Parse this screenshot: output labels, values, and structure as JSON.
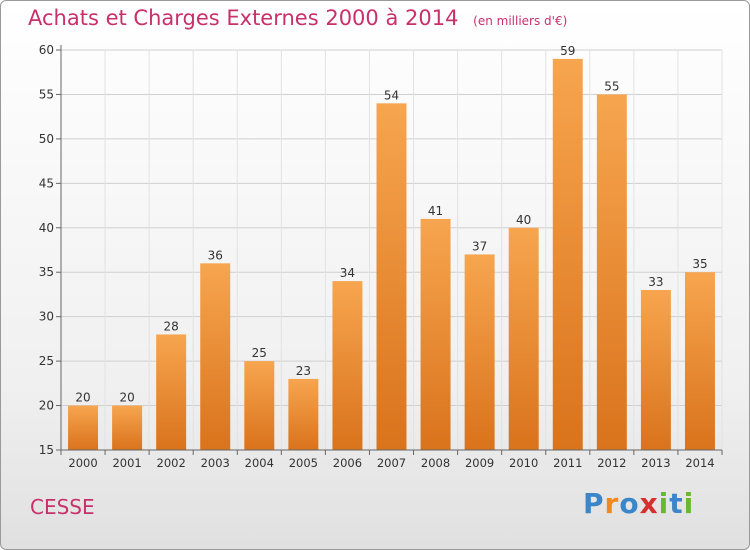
{
  "header": {
    "title": "Achats et Charges Externes 2000 à 2014",
    "subtitle": "(en milliers d'€)"
  },
  "footer": {
    "commune": "CESSE",
    "logo": "Proxiti"
  },
  "colors": {
    "bar_top": "#f7a54f",
    "bar_bottom": "#d9731c",
    "title": "#c8306a",
    "logo": [
      "#3a86c8",
      "#f08a1c",
      "#3a86c8",
      "#d62f2f",
      "#6ab82f",
      "#3a86c8",
      "#6ab82f"
    ]
  },
  "chart_data": {
    "type": "bar",
    "categories": [
      "2000",
      "2001",
      "2002",
      "2003",
      "2004",
      "2005",
      "2006",
      "2007",
      "2008",
      "2009",
      "2010",
      "2011",
      "2012",
      "2013",
      "2014"
    ],
    "values": [
      20,
      20,
      28,
      36,
      25,
      23,
      34,
      54,
      41,
      37,
      40,
      59,
      55,
      33,
      35
    ],
    "ylim": [
      15,
      60
    ],
    "yticks": [
      15,
      20,
      25,
      30,
      35,
      40,
      45,
      50,
      55,
      60
    ],
    "grid": true
  }
}
